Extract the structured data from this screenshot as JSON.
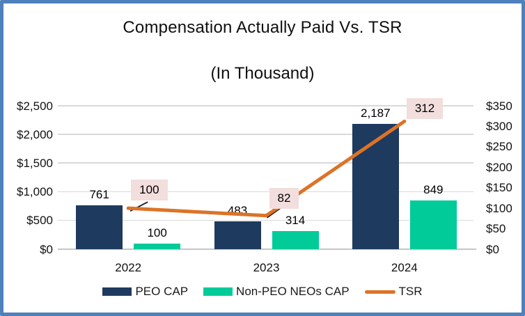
{
  "frame": {
    "border_color": "#4E80BC",
    "background": "#FFFFFF"
  },
  "chart_data": {
    "type": "bar-line-combo",
    "title": "Compensation Actually Paid Vs. TSR",
    "subtitle": "(In Thousand)",
    "categories": [
      "2022",
      "2023",
      "2024"
    ],
    "series": [
      {
        "name": "PEO CAP",
        "type": "bar",
        "axis": "left",
        "color": "#1E3A5F",
        "values": [
          761,
          483,
          2187
        ],
        "data_labels": [
          "761",
          "483",
          "2,187"
        ]
      },
      {
        "name": "Non-PEO NEOs CAP",
        "type": "bar",
        "axis": "left",
        "color": "#00CB99",
        "values": [
          100,
          314,
          849
        ],
        "data_labels": [
          "100",
          "314",
          "849"
        ]
      },
      {
        "name": "TSR",
        "type": "line",
        "axis": "right",
        "color": "#DC7327",
        "values": [
          100,
          82,
          312
        ],
        "data_labels": [
          "100",
          "82",
          "312"
        ],
        "data_label_background": "#F2DEDD"
      }
    ],
    "left_axis": {
      "min": 0,
      "max": 2500,
      "step": 500,
      "tick_labels": [
        "$2,500",
        "$2,000",
        "$1,500",
        "$1,000",
        "$500",
        "$0"
      ]
    },
    "right_axis": {
      "min": 0,
      "max": 350,
      "step": 50,
      "tick_labels": [
        "$350",
        "$300",
        "$250",
        "$200",
        "$150",
        "$100",
        "$50",
        "$0"
      ]
    },
    "gridlines": "horizontal",
    "legend_position": "bottom"
  }
}
